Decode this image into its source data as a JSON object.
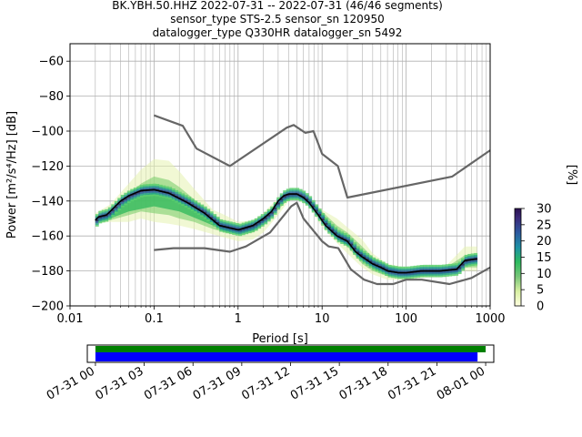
{
  "title_lines": [
    "BK.YBH.50.HHZ   2022-07-31 -- 2022-07-31  (46/46 segments)",
    "sensor_type STS-2.5 sensor_sn 120950",
    "datalogger_type Q330HR datalogger_sn 5492"
  ],
  "colors": {
    "noise_model": "#666666",
    "mode_line": "#000000",
    "coverage_data": "#008000",
    "coverage_used": "#0000ff"
  },
  "chart_data": [
    {
      "type": "heatmap",
      "name": "ppsd",
      "xlabel": "Period [s]",
      "ylabel": "Power [m²/s⁴/Hz] [dB]",
      "xscale": "log",
      "xlim": [
        0.01,
        1000
      ],
      "ylim": [
        -200,
        -50
      ],
      "xticks": [
        {
          "value": 0.01,
          "label": "0.01"
        },
        {
          "value": 0.1,
          "label": "0.1"
        },
        {
          "value": 1,
          "label": "1"
        },
        {
          "value": 10,
          "label": "10"
        },
        {
          "value": 100,
          "label": "100"
        },
        {
          "value": 1000,
          "label": "1000"
        }
      ],
      "yticks": [
        {
          "value": -60,
          "label": "−60"
        },
        {
          "value": -80,
          "label": "−80"
        },
        {
          "value": -100,
          "label": "−100"
        },
        {
          "value": -120,
          "label": "−120"
        },
        {
          "value": -140,
          "label": "−140"
        },
        {
          "value": -160,
          "label": "−160"
        },
        {
          "value": -180,
          "label": "−180"
        },
        {
          "value": -200,
          "label": "−200"
        }
      ],
      "grid": true,
      "colorbar": {
        "label": "[%]",
        "range": [
          0,
          30
        ],
        "ticks": [
          {
            "value": 0,
            "label": "0"
          },
          {
            "value": 5,
            "label": "5"
          },
          {
            "value": 10,
            "label": "10"
          },
          {
            "value": 15,
            "label": "15"
          },
          {
            "value": 20,
            "label": "20"
          },
          {
            "value": 25,
            "label": "25"
          },
          {
            "value": 30,
            "label": "30"
          }
        ]
      },
      "high_noise_model": [
        [
          0.1,
          -91
        ],
        [
          0.22,
          -97
        ],
        [
          0.32,
          -110
        ],
        [
          0.8,
          -120
        ],
        [
          3.8,
          -98
        ],
        [
          4.6,
          -96.5
        ],
        [
          6.3,
          -101
        ],
        [
          7.9,
          -100
        ],
        [
          10,
          -113
        ],
        [
          15.4,
          -120
        ],
        [
          20,
          -138
        ],
        [
          354,
          -126
        ],
        [
          1000,
          -111
        ]
      ],
      "low_noise_model": [
        [
          0.1,
          -168
        ],
        [
          0.17,
          -167
        ],
        [
          0.4,
          -167
        ],
        [
          0.8,
          -169
        ],
        [
          1.24,
          -166
        ],
        [
          2.4,
          -158
        ],
        [
          4.3,
          -143
        ],
        [
          5,
          -141
        ],
        [
          6,
          -150
        ],
        [
          10,
          -163
        ],
        [
          12,
          -166
        ],
        [
          15.6,
          -167
        ],
        [
          21.9,
          -179
        ],
        [
          31.6,
          -185
        ],
        [
          45,
          -187.5
        ],
        [
          70,
          -187.5
        ],
        [
          100,
          -185
        ],
        [
          154,
          -185
        ],
        [
          328,
          -187.5
        ],
        [
          600,
          -184
        ],
        [
          1000,
          -178
        ]
      ],
      "mode_line": [
        [
          0.02,
          -151
        ],
        [
          0.022,
          -149
        ],
        [
          0.027,
          -148
        ],
        [
          0.03,
          -146
        ],
        [
          0.04,
          -140
        ],
        [
          0.05,
          -137
        ],
        [
          0.07,
          -134
        ],
        [
          0.1,
          -133.5
        ],
        [
          0.15,
          -135.5
        ],
        [
          0.25,
          -141
        ],
        [
          0.4,
          -147
        ],
        [
          0.6,
          -154
        ],
        [
          1,
          -156.5
        ],
        [
          1.5,
          -154
        ],
        [
          2,
          -150
        ],
        [
          2.5,
          -146
        ],
        [
          3,
          -140
        ],
        [
          3.5,
          -137
        ],
        [
          4,
          -136
        ],
        [
          5,
          -136
        ],
        [
          6,
          -138
        ],
        [
          7,
          -141
        ],
        [
          9,
          -148
        ],
        [
          11,
          -154
        ],
        [
          15,
          -160
        ],
        [
          20,
          -163
        ],
        [
          25,
          -169
        ],
        [
          30,
          -172
        ],
        [
          40,
          -176
        ],
        [
          50,
          -178
        ],
        [
          60,
          -180
        ],
        [
          80,
          -181
        ],
        [
          100,
          -181
        ],
        [
          150,
          -180
        ],
        [
          250,
          -180
        ],
        [
          400,
          -179
        ],
        [
          500,
          -174
        ],
        [
          700,
          -173
        ]
      ],
      "pdf_bands": [
        {
          "x": [
            0.02,
            0.03,
            0.05,
            0.07,
            0.1,
            0.15,
            0.2,
            0.3,
            0.5,
            0.7,
            1,
            1.5,
            2,
            3,
            4,
            5,
            7,
            10,
            15,
            20,
            30,
            40,
            60,
            100,
            150,
            300,
            500,
            700
          ],
          "upper": [
            -147,
            -142,
            -130,
            -122,
            -116,
            -117,
            -123,
            -133,
            -145,
            -148,
            -152,
            -151,
            -147,
            -138,
            -134,
            -134,
            -138,
            -145,
            -150,
            -155,
            -162,
            -170,
            -176,
            -178,
            -177,
            -177,
            -166,
            -166
          ],
          "lower": [
            -153,
            -152,
            -152,
            -150,
            -152,
            -153,
            -154,
            -156,
            -159,
            -161,
            -163,
            -162,
            -158,
            -148,
            -140,
            -139,
            -143,
            -155,
            -164,
            -170,
            -178,
            -182,
            -185,
            -185,
            -184,
            -183,
            -180,
            -180
          ],
          "level": 3
        },
        {
          "x": [
            0.02,
            0.03,
            0.05,
            0.07,
            0.1,
            0.15,
            0.2,
            0.3,
            0.5,
            0.7,
            1,
            1.5,
            2,
            3,
            4,
            5,
            7,
            10,
            15,
            20,
            30,
            40,
            60,
            100,
            150,
            300,
            500,
            700
          ],
          "upper": [
            -149,
            -146,
            -136,
            -130,
            -126,
            -128,
            -132,
            -139,
            -148,
            -152,
            -154,
            -152,
            -149,
            -140,
            -136,
            -135,
            -139,
            -146,
            -154,
            -158,
            -166,
            -172,
            -177,
            -179,
            -178,
            -178,
            -171,
            -171
          ],
          "lower": [
            -152,
            -151,
            -148,
            -146,
            -147,
            -148,
            -150,
            -152,
            -156,
            -158,
            -159,
            -158,
            -154,
            -145,
            -139,
            -138,
            -142,
            -151,
            -161,
            -166,
            -176,
            -180,
            -183,
            -183,
            -183,
            -182,
            -178,
            -178
          ],
          "level": 10
        },
        {
          "x": [
            0.02,
            0.03,
            0.05,
            0.1,
            0.2,
            0.4,
            0.7,
            1,
            1.5,
            2,
            3,
            4,
            5,
            7,
            10,
            15,
            20,
            30,
            50,
            100,
            200,
            400,
            500,
            700
          ],
          "upper": [
            -150,
            -148,
            -139,
            -135,
            -140,
            -148,
            -154,
            -156,
            -154,
            -150,
            -140,
            -136.5,
            -136,
            -139,
            -147,
            -158,
            -162,
            -170,
            -177,
            -181,
            -180,
            -179,
            -174,
            -173
          ],
          "lower": [
            -152,
            -150,
            -146,
            -143,
            -146,
            -152,
            -157,
            -158,
            -157,
            -152,
            -142,
            -138,
            -137,
            -141,
            -150,
            -162,
            -165,
            -174,
            -180,
            -182.5,
            -182,
            -181,
            -176,
            -175
          ],
          "level": 22
        }
      ]
    },
    {
      "type": "timeline",
      "name": "data-coverage",
      "x_start": "2022-07-31 00:00",
      "x_end": "2022-08-01 00:00",
      "xlim_hours": [
        -0.5,
        24.5
      ],
      "xticks": [
        {
          "value": 0,
          "label": "07-31 00"
        },
        {
          "value": 3,
          "label": "07-31 03"
        },
        {
          "value": 6,
          "label": "07-31 06"
        },
        {
          "value": 9,
          "label": "07-31 09"
        },
        {
          "value": 12,
          "label": "07-31 12"
        },
        {
          "value": 15,
          "label": "07-31 15"
        },
        {
          "value": 18,
          "label": "07-31 18"
        },
        {
          "value": 21,
          "label": "07-31 21"
        },
        {
          "value": 24,
          "label": "08-01 00"
        }
      ],
      "bars": [
        {
          "role": "data",
          "start_hour": 0,
          "end_hour": 24.0,
          "color": "#008000"
        },
        {
          "role": "used",
          "start_hour": 0,
          "end_hour": 23.5,
          "color": "#0000ff"
        }
      ]
    }
  ]
}
